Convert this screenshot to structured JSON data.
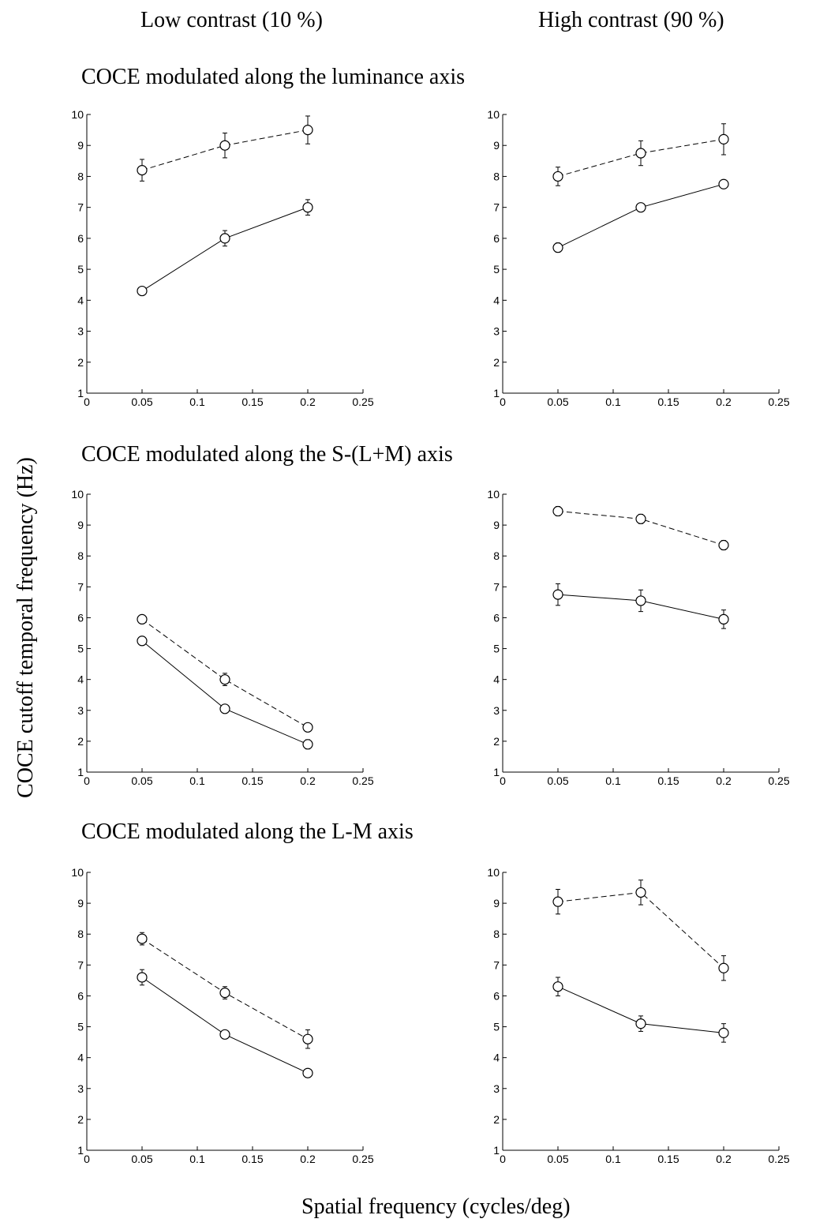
{
  "headers": {
    "left_column": "Low contrast (10 %)",
    "right_column": "High contrast (90 %)"
  },
  "row_titles": [
    "COCE modulated along the luminance axis",
    "COCE modulated along the S-(L+M) axis",
    "COCE modulated along the L-M axis"
  ],
  "ylabel": "COCE cutoff temporal frequency (Hz)",
  "xlabel": "Spatial frequency (cycles/deg)",
  "chart_data": [
    {
      "type": "line",
      "row": 0,
      "col": 0,
      "x": [
        0.05,
        0.125,
        0.2
      ],
      "xlim": [
        0,
        0.25
      ],
      "ylim": [
        1,
        10
      ],
      "xticks": [
        "0",
        "0.05",
        "0.1",
        "0.15",
        "0.2",
        "0.25"
      ],
      "yticks": [
        "1",
        "2",
        "3",
        "4",
        "5",
        "6",
        "7",
        "8",
        "9",
        "10"
      ],
      "series": [
        {
          "style": "dashed",
          "values": [
            8.2,
            9.0,
            9.5
          ],
          "error": [
            0.35,
            0.4,
            0.45
          ]
        },
        {
          "style": "solid",
          "values": [
            4.3,
            6.0,
            7.0
          ],
          "error": [
            0.1,
            0.25,
            0.25
          ]
        }
      ]
    },
    {
      "type": "line",
      "row": 0,
      "col": 1,
      "x": [
        0.05,
        0.125,
        0.2
      ],
      "xlim": [
        0,
        0.25
      ],
      "ylim": [
        1,
        10
      ],
      "xticks": [
        "0",
        "0.05",
        "0.1",
        "0.15",
        "0.2",
        "0.25"
      ],
      "yticks": [
        "1",
        "2",
        "3",
        "4",
        "5",
        "6",
        "7",
        "8",
        "9",
        "10"
      ],
      "series": [
        {
          "style": "dashed",
          "values": [
            8.0,
            8.75,
            9.2
          ],
          "error": [
            0.3,
            0.4,
            0.5
          ]
        },
        {
          "style": "solid",
          "values": [
            5.7,
            7.0,
            7.75
          ],
          "error": [
            0.15,
            0.1,
            0.1
          ]
        }
      ]
    },
    {
      "type": "line",
      "row": 1,
      "col": 0,
      "x": [
        0.05,
        0.125,
        0.2
      ],
      "xlim": [
        0,
        0.25
      ],
      "ylim": [
        1,
        10
      ],
      "xticks": [
        "0",
        "0.05",
        "0.1",
        "0.15",
        "0.2",
        "0.25"
      ],
      "yticks": [
        "1",
        "2",
        "3",
        "4",
        "5",
        "6",
        "7",
        "8",
        "9",
        "10"
      ],
      "series": [
        {
          "style": "dashed",
          "values": [
            5.95,
            4.0,
            2.45
          ],
          "error": [
            0.1,
            0.2,
            0.1
          ]
        },
        {
          "style": "solid",
          "values": [
            5.25,
            3.05,
            1.9
          ],
          "error": [
            0.1,
            0.1,
            0.15
          ]
        }
      ]
    },
    {
      "type": "line",
      "row": 1,
      "col": 1,
      "x": [
        0.05,
        0.125,
        0.2
      ],
      "xlim": [
        0,
        0.25
      ],
      "ylim": [
        1,
        10
      ],
      "xticks": [
        "0",
        "0.05",
        "0.1",
        "0.15",
        "0.2",
        "0.25"
      ],
      "yticks": [
        "1",
        "2",
        "3",
        "4",
        "5",
        "6",
        "7",
        "8",
        "9",
        "10"
      ],
      "series": [
        {
          "style": "dashed",
          "values": [
            9.45,
            9.2,
            8.35
          ],
          "error": [
            0.15,
            0.15,
            0.15
          ]
        },
        {
          "style": "solid",
          "values": [
            6.75,
            6.55,
            5.95
          ],
          "error": [
            0.35,
            0.35,
            0.3
          ]
        }
      ]
    },
    {
      "type": "line",
      "row": 2,
      "col": 0,
      "x": [
        0.05,
        0.125,
        0.2
      ],
      "xlim": [
        0,
        0.25
      ],
      "ylim": [
        1,
        10
      ],
      "xticks": [
        "0",
        "0.05",
        "0.1",
        "0.15",
        "0.2",
        "0.25"
      ],
      "yticks": [
        "1",
        "2",
        "3",
        "4",
        "5",
        "6",
        "7",
        "8",
        "9",
        "10"
      ],
      "series": [
        {
          "style": "dashed",
          "values": [
            7.85,
            6.1,
            4.6
          ],
          "error": [
            0.2,
            0.2,
            0.3
          ]
        },
        {
          "style": "solid",
          "values": [
            6.6,
            4.75,
            3.5
          ],
          "error": [
            0.25,
            0.1,
            0.1
          ]
        }
      ]
    },
    {
      "type": "line",
      "row": 2,
      "col": 1,
      "x": [
        0.05,
        0.125,
        0.2
      ],
      "xlim": [
        0,
        0.25
      ],
      "ylim": [
        1,
        10
      ],
      "xticks": [
        "0",
        "0.05",
        "0.1",
        "0.15",
        "0.2",
        "0.25"
      ],
      "yticks": [
        "1",
        "2",
        "3",
        "4",
        "5",
        "6",
        "7",
        "8",
        "9",
        "10"
      ],
      "series": [
        {
          "style": "dashed",
          "values": [
            9.05,
            9.35,
            6.9
          ],
          "error": [
            0.4,
            0.4,
            0.4
          ]
        },
        {
          "style": "solid",
          "values": [
            6.3,
            5.1,
            4.8
          ],
          "error": [
            0.3,
            0.25,
            0.3
          ]
        }
      ]
    }
  ]
}
